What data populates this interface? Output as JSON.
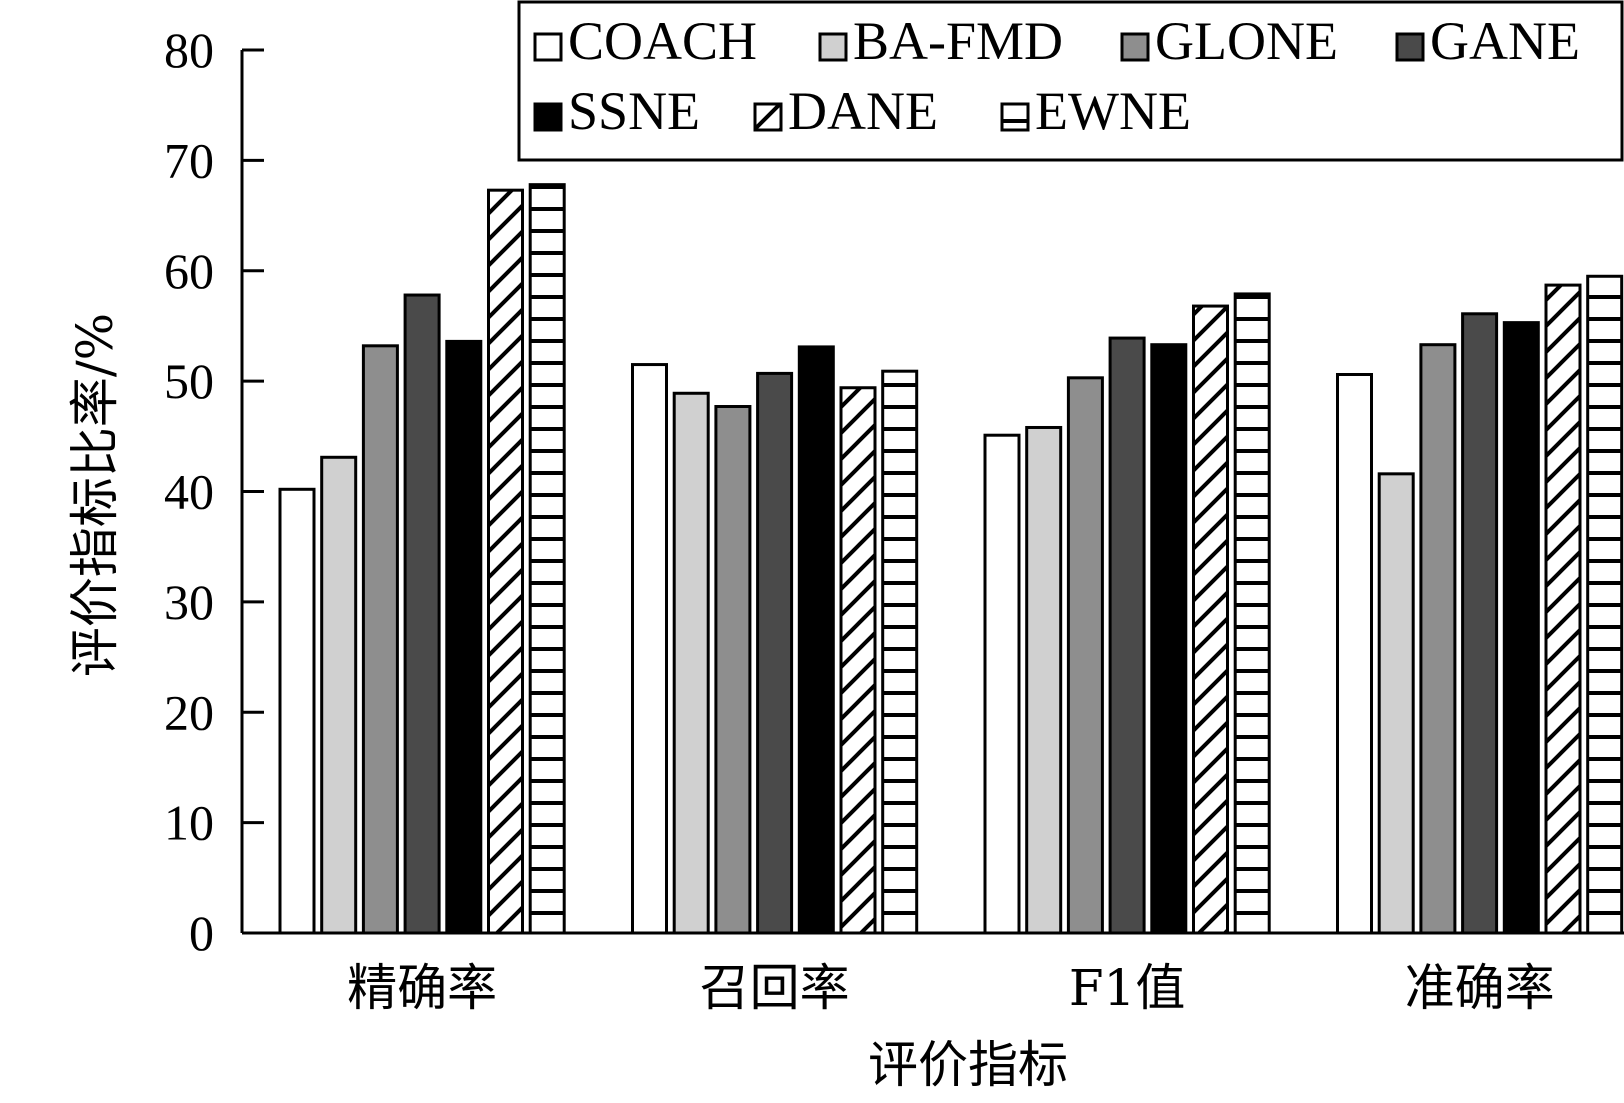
{
  "chart_data": {
    "type": "bar",
    "title": "",
    "xlabel": "评价指标",
    "ylabel": "评价指标比率/%",
    "ylim": [
      0,
      80
    ],
    "yticks": [
      0,
      10,
      20,
      30,
      40,
      50,
      60,
      70,
      80
    ],
    "grid": false,
    "legend_position": "top-right",
    "categories": [
      "精确率",
      "召回率",
      "F1值",
      "准确率"
    ],
    "series": [
      {
        "name": "COACH",
        "pattern": "solid",
        "color": "#ffffff",
        "values": [
          40.2,
          51.5,
          45.1,
          50.6
        ]
      },
      {
        "name": "BA-FMD",
        "pattern": "solid",
        "color": "#d0d0d0",
        "values": [
          43.1,
          48.9,
          45.8,
          41.6
        ]
      },
      {
        "name": "GLONE",
        "pattern": "solid",
        "color": "#8e8e8e",
        "values": [
          53.2,
          47.7,
          50.3,
          53.3
        ]
      },
      {
        "name": "GANE",
        "pattern": "solid",
        "color": "#4a4a4a",
        "values": [
          57.8,
          50.7,
          53.9,
          56.1
        ]
      },
      {
        "name": "SSNE",
        "pattern": "solid",
        "color": "#000000",
        "values": [
          53.6,
          53.1,
          53.3,
          55.3
        ]
      },
      {
        "name": "DANE",
        "pattern": "diagonal",
        "color": "#ffffff",
        "values": [
          67.3,
          49.4,
          56.8,
          58.7
        ]
      },
      {
        "name": "EWNE",
        "pattern": "horizontal",
        "color": "#ffffff",
        "values": [
          67.8,
          50.9,
          57.9,
          59.5
        ]
      }
    ]
  }
}
